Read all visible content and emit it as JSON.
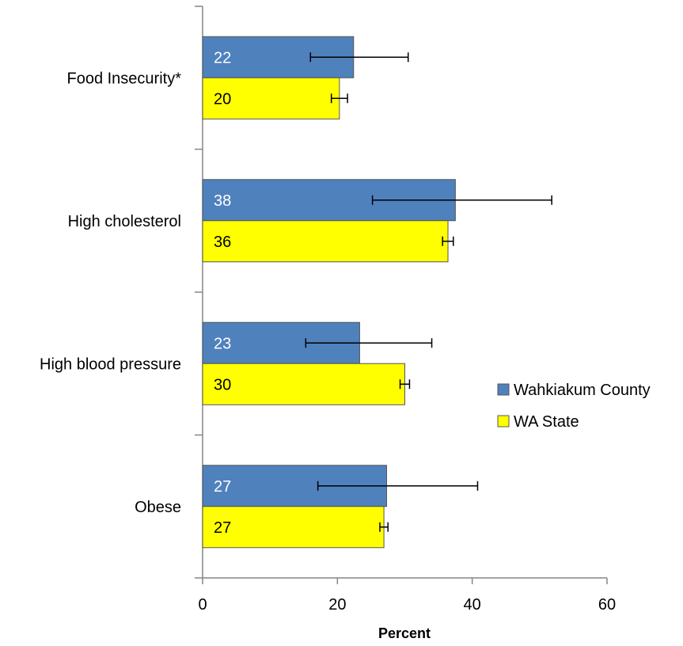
{
  "chart_data": {
    "type": "bar",
    "orientation": "horizontal",
    "categories": [
      "Food Insecurity*",
      "High cholesterol",
      "High blood pressure",
      "Obese"
    ],
    "series": [
      {
        "name": "Wahkiakum County",
        "color": "#4F81BD",
        "label_color": "#ffffff",
        "values": [
          22,
          38,
          23,
          27
        ],
        "bar_values": [
          22.4,
          37.5,
          23.3,
          27.3
        ],
        "error_low": [
          16,
          25.2,
          15.3,
          17.1
        ],
        "error_high": [
          30.5,
          51.8,
          34.0,
          40.8
        ]
      },
      {
        "name": "WA State",
        "color": "#FFFF00",
        "label_color": "#000000",
        "values": [
          20,
          36,
          30,
          27
        ],
        "bar_values": [
          20.3,
          36.4,
          30.0,
          26.9
        ],
        "error_low": [
          19.1,
          35.6,
          29.3,
          26.3
        ],
        "error_high": [
          21.5,
          37.2,
          30.7,
          27.5
        ]
      }
    ],
    "xlabel": "Percent",
    "xlim": [
      0,
      60
    ],
    "xticks": [
      0,
      20,
      40,
      60
    ],
    "legend_position": "right",
    "grid": false
  }
}
